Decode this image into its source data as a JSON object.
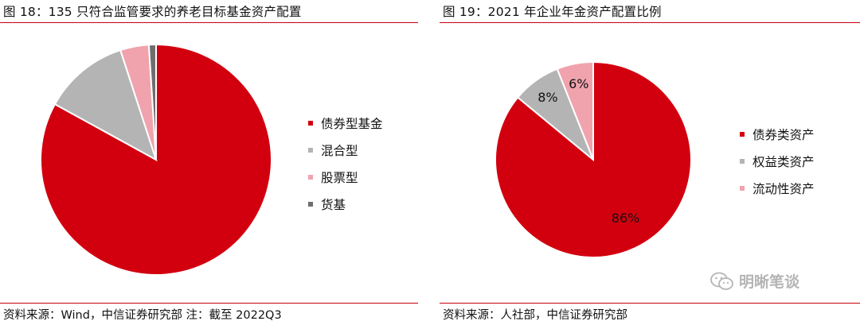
{
  "left": {
    "title": "图 18：135 只符合监管要求的养老目标基金资产配置",
    "source": "资料来源：Wind，中信证券研究部    注：截至 2022Q3"
  },
  "right": {
    "title": "图 19：2021 年企业年金资产配置比例",
    "source": "资料来源：人社部，中信证券研究部"
  },
  "watermark": {
    "text": "明晰笔谈",
    "icon": "wechat-icon"
  },
  "chart_data": [
    {
      "type": "pie",
      "title": "图 18：135 只符合监管要求的养老目标基金资产配置",
      "categories": [
        "债券型基金",
        "混合型",
        "股票型",
        "货基"
      ],
      "values": [
        83,
        12,
        4,
        1
      ],
      "colors": [
        "#d2000f",
        "#b4b4b4",
        "#f0a3ad",
        "#6e6e6e"
      ],
      "data_labels": [],
      "start_angle_deg": 0,
      "direction": "clockwise",
      "legend": "right"
    },
    {
      "type": "pie",
      "title": "图 19：2021 年企业年金资产配置比例",
      "categories": [
        "债券类资产",
        "权益类资产",
        "流动性资产"
      ],
      "values": [
        86,
        8,
        6
      ],
      "colors": [
        "#d2000f",
        "#b4b4b4",
        "#f0a3ad"
      ],
      "data_labels": [
        "86%",
        "8%",
        "6%"
      ],
      "start_angle_deg": 0,
      "direction": "clockwise",
      "legend": "right"
    }
  ]
}
